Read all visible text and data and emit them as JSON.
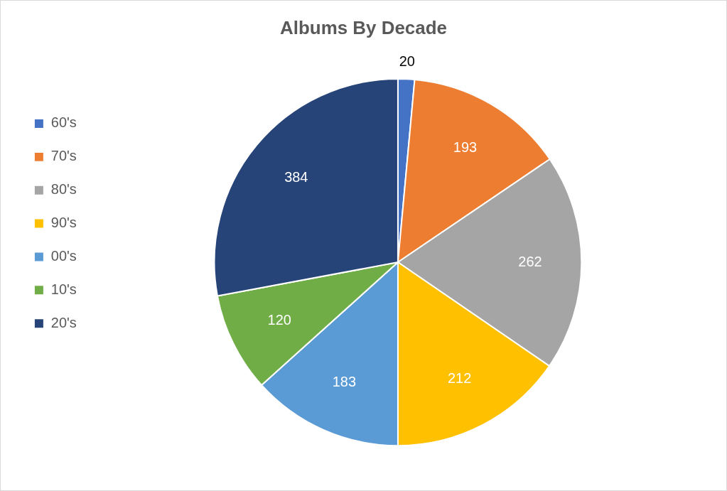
{
  "chart_data": {
    "type": "pie",
    "title": "Albums By Decade",
    "categories": [
      "60's",
      "70's",
      "80's",
      "90's",
      "00's",
      "10's",
      "20's"
    ],
    "values": [
      20,
      193,
      262,
      212,
      183,
      120,
      384
    ],
    "colors": [
      "#4472c4",
      "#ed7d31",
      "#a5a5a5",
      "#ffc000",
      "#5b9bd5",
      "#70ad47",
      "#264478"
    ],
    "data_labels": true,
    "legend": "left"
  }
}
